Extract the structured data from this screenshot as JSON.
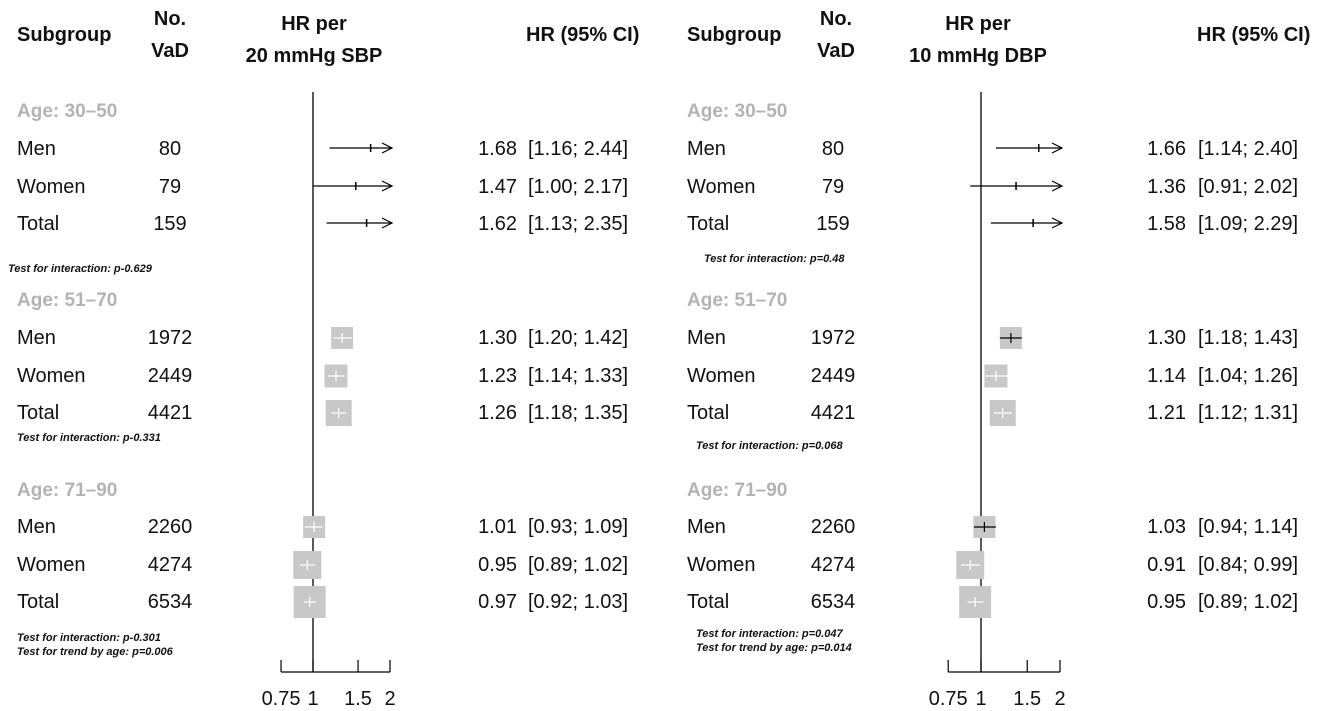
{
  "panels": [
    {
      "headers": {
        "subgroup": "Subgroup",
        "no_line1": "No.",
        "no_line2": "VaD",
        "hr_line1": "HR per",
        "hr_line2": "20 mmHg SBP",
        "ci": "HR (95% CI)"
      },
      "groups": [
        {
          "label": "Age: 30–50",
          "rows": [
            {
              "name": "Men",
              "n": "80",
              "hr": "1.68",
              "ci": "[1.16; 2.44]"
            },
            {
              "name": "Women",
              "n": "79",
              "hr": "1.47",
              "ci": "[1.00; 2.17]"
            },
            {
              "name": "Total",
              "n": "159",
              "hr": "1.62",
              "ci": "[1.13; 2.35]"
            }
          ],
          "notes": [
            "Test for interaction: p-0.629"
          ]
        },
        {
          "label": "Age: 51–70",
          "rows": [
            {
              "name": "Men",
              "n": "1972",
              "hr": "1.30",
              "ci": "[1.20; 1.42]"
            },
            {
              "name": "Women",
              "n": "2449",
              "hr": "1.23",
              "ci": "[1.14; 1.33]"
            },
            {
              "name": "Total",
              "n": "4421",
              "hr": "1.26",
              "ci": "[1.18; 1.35]"
            }
          ],
          "notes": [
            "Test for interaction: p-0.331"
          ]
        },
        {
          "label": "Age: 71–90",
          "rows": [
            {
              "name": "Men",
              "n": "2260",
              "hr": "1.01",
              "ci": "[0.93; 1.09]"
            },
            {
              "name": "Women",
              "n": "4274",
              "hr": "0.95",
              "ci": "[0.89; 1.02]"
            },
            {
              "name": "Total",
              "n": "6534",
              "hr": "0.97",
              "ci": "[0.92; 1.03]"
            }
          ],
          "notes": [
            "Test for interaction: p-0.301",
            "Test for trend by age: p=0.006"
          ]
        }
      ],
      "axis_ticks": [
        "0.75",
        "1",
        "1.5",
        "2"
      ]
    },
    {
      "headers": {
        "subgroup": "Subgroup",
        "no_line1": "No.",
        "no_line2": "VaD",
        "hr_line1": "HR per",
        "hr_line2": "10 mmHg DBP",
        "ci": "HR (95% CI)"
      },
      "groups": [
        {
          "label": "Age: 30–50",
          "rows": [
            {
              "name": "Men",
              "n": "80",
              "hr": "1.66",
              "ci": "[1.14; 2.40]"
            },
            {
              "name": "Women",
              "n": "79",
              "hr": "1.36",
              "ci": "[0.91; 2.02]"
            },
            {
              "name": "Total",
              "n": "159",
              "hr": "1.58",
              "ci": "[1.09; 2.29]"
            }
          ],
          "notes": [
            "Test for interaction: p=0.48"
          ]
        },
        {
          "label": "Age: 51–70",
          "rows": [
            {
              "name": "Men",
              "n": "1972",
              "hr": "1.30",
              "ci": "[1.18; 1.43]"
            },
            {
              "name": "Women",
              "n": "2449",
              "hr": "1.14",
              "ci": "[1.04; 1.26]"
            },
            {
              "name": "Total",
              "n": "4421",
              "hr": "1.21",
              "ci": "[1.12; 1.31]"
            }
          ],
          "notes": [
            "Test for interaction: p=0.068"
          ]
        },
        {
          "label": "Age: 71–90",
          "rows": [
            {
              "name": "Men",
              "n": "2260",
              "hr": "1.03",
              "ci": "[0.94; 1.14]"
            },
            {
              "name": "Women",
              "n": "4274",
              "hr": "0.91",
              "ci": "[0.84; 0.99]"
            },
            {
              "name": "Total",
              "n": "6534",
              "hr": "0.95",
              "ci": "[0.89; 1.02]"
            }
          ],
          "notes": [
            "Test for interaction: p=0.047",
            "Test for trend by age: p=0.014"
          ]
        }
      ],
      "axis_ticks": [
        "0.75",
        "1",
        "1.5",
        "2"
      ]
    }
  ],
  "chart_data": [
    {
      "type": "forest",
      "scale": "log",
      "xlim": [
        0.75,
        2
      ],
      "xticks": [
        0.75,
        1,
        1.5,
        2
      ],
      "reference_line": 1,
      "box_color": "#c8c8c8",
      "clipped_arrows": true,
      "series": [
        {
          "group": "Age: 30–50",
          "name": "Men",
          "hr": 1.68,
          "lo": 1.16,
          "hi": 2.44,
          "n": 80
        },
        {
          "group": "Age: 30–50",
          "name": "Women",
          "hr": 1.47,
          "lo": 1.0,
          "hi": 2.17,
          "n": 79
        },
        {
          "group": "Age: 30–50",
          "name": "Total",
          "hr": 1.62,
          "lo": 1.13,
          "hi": 2.35,
          "n": 159
        },
        {
          "group": "Age: 51–70",
          "name": "Men",
          "hr": 1.3,
          "lo": 1.2,
          "hi": 1.42,
          "n": 1972
        },
        {
          "group": "Age: 51–70",
          "name": "Women",
          "hr": 1.23,
          "lo": 1.14,
          "hi": 1.33,
          "n": 2449
        },
        {
          "group": "Age: 51–70",
          "name": "Total",
          "hr": 1.26,
          "lo": 1.18,
          "hi": 1.35,
          "n": 4421
        },
        {
          "group": "Age: 71–90",
          "name": "Men",
          "hr": 1.01,
          "lo": 0.93,
          "hi": 1.09,
          "n": 2260
        },
        {
          "group": "Age: 71–90",
          "name": "Women",
          "hr": 0.95,
          "lo": 0.89,
          "hi": 1.02,
          "n": 4274
        },
        {
          "group": "Age: 71–90",
          "name": "Total",
          "hr": 0.97,
          "lo": 0.92,
          "hi": 1.03,
          "n": 6534
        }
      ]
    },
    {
      "type": "forest",
      "scale": "log",
      "xlim": [
        0.75,
        2
      ],
      "xticks": [
        0.75,
        1,
        1.5,
        2
      ],
      "reference_line": 1,
      "box_color": "#c8c8c8",
      "clipped_arrows": true,
      "series": [
        {
          "group": "Age: 30–50",
          "name": "Men",
          "hr": 1.66,
          "lo": 1.14,
          "hi": 2.4,
          "n": 80
        },
        {
          "group": "Age: 30–50",
          "name": "Women",
          "hr": 1.36,
          "lo": 0.91,
          "hi": 2.02,
          "n": 79
        },
        {
          "group": "Age: 30–50",
          "name": "Total",
          "hr": 1.58,
          "lo": 1.09,
          "hi": 2.29,
          "n": 159
        },
        {
          "group": "Age: 51–70",
          "name": "Men",
          "hr": 1.3,
          "lo": 1.18,
          "hi": 1.43,
          "n": 1972
        },
        {
          "group": "Age: 51–70",
          "name": "Women",
          "hr": 1.14,
          "lo": 1.04,
          "hi": 1.26,
          "n": 2449
        },
        {
          "group": "Age: 51–70",
          "name": "Total",
          "hr": 1.21,
          "lo": 1.12,
          "hi": 1.31,
          "n": 4421
        },
        {
          "group": "Age: 71–90",
          "name": "Men",
          "hr": 1.03,
          "lo": 0.94,
          "hi": 1.14,
          "n": 2260
        },
        {
          "group": "Age: 71–90",
          "name": "Women",
          "hr": 0.91,
          "lo": 0.84,
          "hi": 0.99,
          "n": 4274
        },
        {
          "group": "Age: 71–90",
          "name": "Total",
          "hr": 0.95,
          "lo": 0.89,
          "hi": 1.02,
          "n": 6534
        }
      ]
    }
  ]
}
